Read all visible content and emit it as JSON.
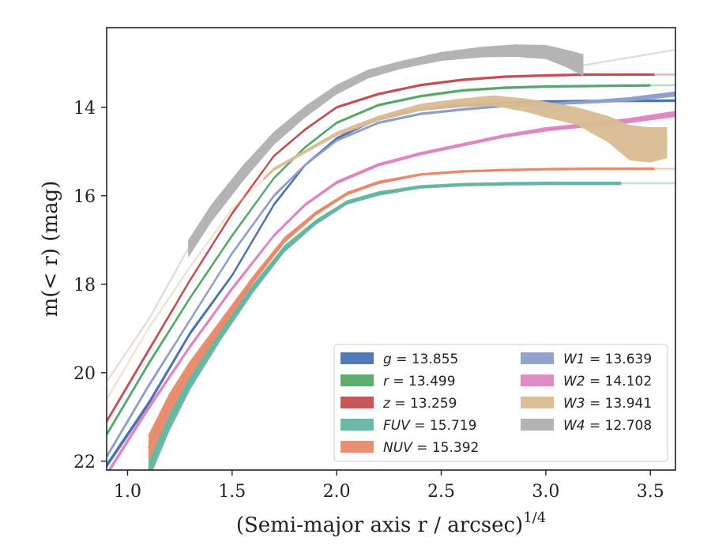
{
  "chart_data": {
    "type": "line",
    "xlabel": "(Semi-major axis r / arcsec)",
    "xlabel_superscript": "1/4",
    "ylabel": "m(< r) (mag)",
    "xlim": [
      0.9,
      3.62
    ],
    "ylim": [
      22.2,
      12.2
    ],
    "y_inverted": true,
    "grid": false,
    "legend_position": "lower-right",
    "x_ticks": [
      {
        "value": 1.0,
        "label": "1.0"
      },
      {
        "value": 1.5,
        "label": "1.5"
      },
      {
        "value": 2.0,
        "label": "2.0"
      },
      {
        "value": 2.5,
        "label": "2.5"
      },
      {
        "value": 3.0,
        "label": "3.0"
      },
      {
        "value": 3.5,
        "label": "3.5"
      }
    ],
    "y_ticks": [
      {
        "value": 14,
        "label": "14"
      },
      {
        "value": 16,
        "label": "16"
      },
      {
        "value": 18,
        "label": "18"
      },
      {
        "value": 20,
        "label": "20"
      },
      {
        "value": 22,
        "label": "22"
      }
    ],
    "series": [
      {
        "key": "g",
        "name": "g = 13.855",
        "color": "#4c72b0",
        "x": [
          0.9,
          1.1,
          1.3,
          1.5,
          1.7,
          1.85,
          2.0,
          2.2,
          2.4,
          2.6,
          2.8,
          3.0,
          3.2,
          3.62
        ],
        "y": [
          22.1,
          20.7,
          19.1,
          17.8,
          16.2,
          15.3,
          14.7,
          14.25,
          14.05,
          13.95,
          13.9,
          13.87,
          13.86,
          13.85
        ],
        "band": [
          0.06,
          0.06,
          0.05,
          0.04,
          0.04,
          0.03,
          0.03,
          0.03,
          0.03,
          0.03,
          0.03,
          0.03,
          0.03,
          0.03
        ],
        "x_end": 3.62,
        "faint_from": 3.62
      },
      {
        "key": "r",
        "name": "r = 13.499",
        "color": "#55a868",
        "x": [
          0.9,
          1.1,
          1.3,
          1.5,
          1.7,
          1.85,
          2.0,
          2.2,
          2.4,
          2.6,
          2.8,
          3.0,
          3.2,
          3.62
        ],
        "y": [
          21.4,
          19.8,
          18.3,
          16.9,
          15.6,
          14.9,
          14.35,
          13.95,
          13.75,
          13.62,
          13.56,
          13.53,
          13.52,
          13.5
        ],
        "band": [
          0.05,
          0.05,
          0.04,
          0.04,
          0.03,
          0.03,
          0.03,
          0.03,
          0.03,
          0.03,
          0.03,
          0.03,
          0.03,
          0.03
        ],
        "x_end": 3.62,
        "faint_from": 3.5
      },
      {
        "key": "z",
        "name": "z = 13.259",
        "color": "#c44e52",
        "x": [
          0.9,
          1.1,
          1.3,
          1.5,
          1.7,
          1.85,
          2.0,
          2.2,
          2.4,
          2.6,
          2.8,
          3.0,
          3.2,
          3.62
        ],
        "y": [
          21.1,
          19.5,
          17.9,
          16.4,
          15.1,
          14.5,
          14.0,
          13.7,
          13.5,
          13.38,
          13.31,
          13.28,
          13.26,
          13.26
        ],
        "band": [
          0.05,
          0.05,
          0.04,
          0.04,
          0.03,
          0.03,
          0.03,
          0.03,
          0.03,
          0.03,
          0.03,
          0.03,
          0.03,
          0.03
        ],
        "x_end": 3.52,
        "faint_from": 3.52
      },
      {
        "key": "FUV",
        "name": "FUV = 15.719",
        "color": "#64b5a0",
        "x": [
          1.1,
          1.2,
          1.3,
          1.45,
          1.6,
          1.75,
          1.9,
          2.05,
          2.2,
          2.4,
          2.6,
          2.8,
          3.0,
          3.2,
          3.62
        ],
        "y": [
          22.2,
          21.1,
          20.2,
          19.1,
          18.1,
          17.2,
          16.6,
          16.15,
          15.95,
          15.8,
          15.75,
          15.73,
          15.72,
          15.72,
          15.72
        ],
        "band": [
          0.25,
          0.22,
          0.18,
          0.14,
          0.1,
          0.08,
          0.06,
          0.05,
          0.05,
          0.04,
          0.04,
          0.04,
          0.04,
          0.04,
          0.04
        ],
        "x_end": 3.36,
        "faint_from": 3.36
      },
      {
        "key": "NUV",
        "name": "NUV = 15.392",
        "color": "#e8896a",
        "x": [
          1.1,
          1.2,
          1.3,
          1.45,
          1.6,
          1.75,
          1.9,
          2.05,
          2.2,
          2.4,
          2.6,
          2.8,
          3.0,
          3.2,
          3.62
        ],
        "y": [
          21.7,
          20.7,
          19.9,
          18.9,
          17.9,
          17.0,
          16.4,
          15.95,
          15.7,
          15.52,
          15.45,
          15.42,
          15.4,
          15.39,
          15.39
        ],
        "band": [
          0.3,
          0.24,
          0.18,
          0.13,
          0.09,
          0.07,
          0.05,
          0.04,
          0.04,
          0.03,
          0.03,
          0.03,
          0.03,
          0.03,
          0.03
        ],
        "x_end": 3.52,
        "faint_from": 3.52
      },
      {
        "key": "W1",
        "name": "W1 = 13.639",
        "color": "#8c9fcb",
        "x": [
          0.9,
          1.1,
          1.3,
          1.5,
          1.7,
          1.85,
          2.0,
          2.2,
          2.4,
          2.6,
          2.8,
          3.0,
          3.2,
          3.4,
          3.62
        ],
        "y": [
          21.9,
          20.3,
          18.8,
          17.3,
          16.0,
          15.3,
          14.75,
          14.35,
          14.15,
          14.05,
          13.97,
          13.93,
          13.88,
          13.82,
          13.7
        ],
        "band": [
          0.05,
          0.05,
          0.04,
          0.04,
          0.04,
          0.03,
          0.03,
          0.03,
          0.03,
          0.03,
          0.03,
          0.03,
          0.04,
          0.05,
          0.06
        ],
        "x_end": 3.62,
        "faint_from": 3.62
      },
      {
        "key": "W2",
        "name": "W2 = 14.102",
        "color": "#dd86c1",
        "x": [
          0.9,
          1.1,
          1.3,
          1.5,
          1.7,
          1.85,
          2.0,
          2.2,
          2.4,
          2.6,
          2.8,
          3.0,
          3.2,
          3.4,
          3.62
        ],
        "y": [
          22.3,
          20.8,
          19.4,
          18.1,
          16.9,
          16.2,
          15.7,
          15.3,
          15.05,
          14.85,
          14.65,
          14.5,
          14.4,
          14.3,
          14.15
        ],
        "band": [
          0.06,
          0.06,
          0.05,
          0.05,
          0.04,
          0.04,
          0.04,
          0.04,
          0.04,
          0.04,
          0.04,
          0.05,
          0.05,
          0.06,
          0.07
        ],
        "x_end": 3.62,
        "faint_from": 3.62
      },
      {
        "key": "W3",
        "name": "W3 = 13.941",
        "color": "#d9bc92",
        "x": [
          0.9,
          1.1,
          1.3,
          1.5,
          1.7,
          1.85,
          2.0,
          2.2,
          2.4,
          2.6,
          2.75,
          2.9,
          3.0,
          3.15,
          3.3,
          3.4,
          3.5,
          3.58
        ],
        "y": [
          20.6,
          19.0,
          17.6,
          16.3,
          15.4,
          15.0,
          14.6,
          14.25,
          14.0,
          13.9,
          13.85,
          13.95,
          14.05,
          14.2,
          14.5,
          14.8,
          14.85,
          14.8
        ],
        "band": [
          0.04,
          0.04,
          0.04,
          0.04,
          0.04,
          0.04,
          0.05,
          0.06,
          0.08,
          0.1,
          0.12,
          0.15,
          0.18,
          0.2,
          0.3,
          0.4,
          0.4,
          0.35
        ],
        "x_end": 3.58,
        "faint_from": 1.65
      },
      {
        "key": "W4",
        "name": "W4 = 12.708",
        "color": "#b0b0b0",
        "x": [
          0.9,
          1.1,
          1.29,
          1.4,
          1.55,
          1.7,
          1.85,
          2.0,
          2.15,
          2.3,
          2.5,
          2.7,
          2.85,
          3.0,
          3.1,
          3.18,
          3.62
        ],
        "y": [
          20.2,
          18.8,
          17.2,
          16.4,
          15.5,
          14.7,
          14.1,
          13.6,
          13.25,
          13.05,
          12.85,
          12.75,
          12.72,
          12.75,
          12.9,
          13.05,
          12.7
        ],
        "band": [
          0.2,
          0.2,
          0.2,
          0.2,
          0.18,
          0.15,
          0.13,
          0.11,
          0.1,
          0.09,
          0.1,
          0.12,
          0.14,
          0.16,
          0.2,
          0.25,
          0.02
        ],
        "x_end": 3.18,
        "faint_from": 3.18,
        "solid_from": 1.29
      }
    ]
  }
}
